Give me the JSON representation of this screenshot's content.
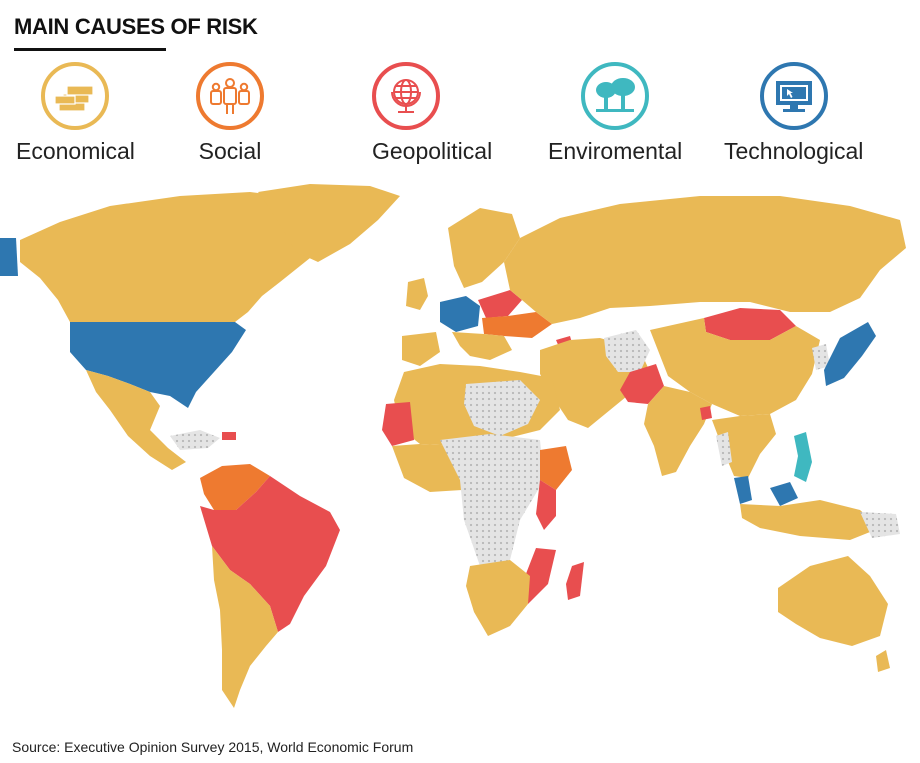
{
  "title": "MAIN CAUSES OF RISK",
  "legend": [
    {
      "label": "Economical",
      "color": "#E9B955",
      "icon": "money-stack-icon"
    },
    {
      "label": "Social",
      "color": "#EE7A30",
      "icon": "people-icon"
    },
    {
      "label": "Geopolitical",
      "color": "#E84E4F",
      "icon": "globe-icon"
    },
    {
      "label": "Enviromental",
      "color": "#3FB8C0",
      "icon": "trees-icon"
    },
    {
      "label": "Technological",
      "color": "#2E77B0",
      "icon": "monitor-icon"
    }
  ],
  "no_data_color": "#D9D9D9",
  "source": "Source: Executive Opinion Survey 2015, World Economic Forum"
}
